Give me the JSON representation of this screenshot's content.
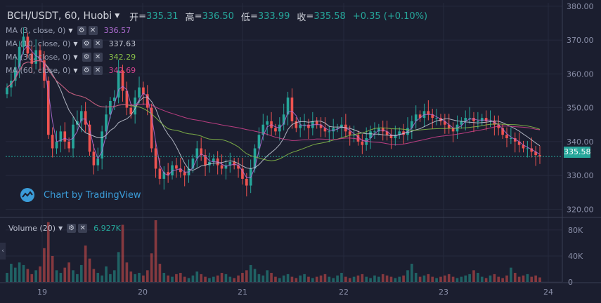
{
  "header": {
    "symbol": "BCH/USDT, 60, Huobi",
    "open_label": "开",
    "open": "335.31",
    "high_label": "高",
    "high": "336.50",
    "low_label": "低",
    "low": "333.99",
    "close_label": "收",
    "close": "335.58",
    "change": "+0.35 (+0.10%)"
  },
  "indicators": [
    {
      "label": "MA (3, close, 0)",
      "value": "336.57",
      "color": "#b46fd8"
    },
    {
      "label": "MA (10, close, 0)",
      "value": "337.63",
      "color": "#c8ccd8"
    },
    {
      "label": "MA (30, close, 0)",
      "value": "342.29",
      "color": "#8bc34a"
    },
    {
      "label": "MA (60, close, 0)",
      "value": "342.69",
      "color": "#d6438f"
    }
  ],
  "volume": {
    "label": "Volume (20)",
    "value": "6.927K"
  },
  "watermark": {
    "text": "Chart by TradingView"
  },
  "current_price": "335.58",
  "chart_data": {
    "type": "candlestick",
    "price_axis": {
      "ticks": [
        "380.00",
        "370.00",
        "360.00",
        "350.00",
        "340.00",
        "330.00",
        "320.00"
      ],
      "range": [
        318,
        381
      ]
    },
    "volume_axis": {
      "ticks": [
        "80K",
        "40K",
        "0"
      ],
      "range": [
        0,
        95000
      ]
    },
    "x_ticks": [
      "19",
      "20",
      "21",
      "22",
      "23",
      "24"
    ],
    "closes": [
      356,
      358,
      362,
      368,
      371,
      366,
      363,
      367,
      364,
      358,
      342,
      338,
      340,
      343,
      340,
      338,
      345,
      346,
      349,
      345,
      337,
      333,
      335,
      343,
      348,
      352,
      353,
      361,
      355,
      350,
      348,
      353,
      356,
      354,
      350,
      338,
      332,
      329,
      331,
      330,
      333,
      332,
      331,
      330,
      332,
      335,
      338,
      336,
      333,
      334,
      335,
      333,
      332,
      333,
      334,
      333,
      332,
      329,
      327,
      332,
      338,
      342,
      345,
      346,
      344,
      343,
      345,
      348,
      353,
      346,
      344,
      345,
      345,
      344,
      346,
      345,
      344,
      343,
      343,
      344,
      344,
      345,
      343,
      342,
      342,
      340,
      339,
      341,
      343,
      343,
      344,
      343,
      342,
      341,
      342,
      343,
      342,
      344,
      346,
      348,
      347,
      349,
      348,
      347,
      347,
      346,
      345,
      344,
      343,
      345,
      346,
      347,
      347,
      346,
      346,
      347,
      346,
      346,
      345,
      344,
      342,
      341,
      341,
      340,
      339,
      338,
      338,
      337,
      336,
      335.58
    ],
    "volumes": [
      14000,
      28000,
      22000,
      30000,
      26000,
      20000,
      12000,
      18000,
      24000,
      52000,
      92000,
      40000,
      18000,
      14000,
      22000,
      30000,
      18000,
      12000,
      26000,
      56000,
      36000,
      20000,
      14000,
      10000,
      24000,
      12000,
      18000,
      46000,
      88000,
      30000,
      16000,
      12000,
      14000,
      10000,
      18000,
      44000,
      95000,
      28000,
      14000,
      10000,
      8000,
      12000,
      14000,
      8000,
      6000,
      10000,
      16000,
      12000,
      8000,
      6000,
      8000,
      10000,
      14000,
      12000,
      8000,
      6000,
      10000,
      14000,
      18000,
      26000,
      20000,
      12000,
      10000,
      18000,
      14000,
      8000,
      6000,
      10000,
      12000,
      8000,
      6000,
      10000,
      12000,
      8000,
      6000,
      8000,
      10000,
      12000,
      8000,
      6000,
      10000,
      14000,
      8000,
      6000,
      8000,
      10000,
      12000,
      8000,
      6000,
      10000,
      8000,
      12000,
      10000,
      8000,
      6000,
      8000,
      10000,
      18000,
      28000,
      14000,
      8000,
      10000,
      12000,
      8000,
      6000,
      8000,
      10000,
      12000,
      8000,
      6000,
      8000,
      10000,
      12000,
      18000,
      14000,
      8000,
      6000,
      10000,
      12000,
      8000,
      6000,
      10000,
      22000,
      14000,
      8000,
      10000,
      12000,
      8000,
      10000,
      7000
    ]
  }
}
